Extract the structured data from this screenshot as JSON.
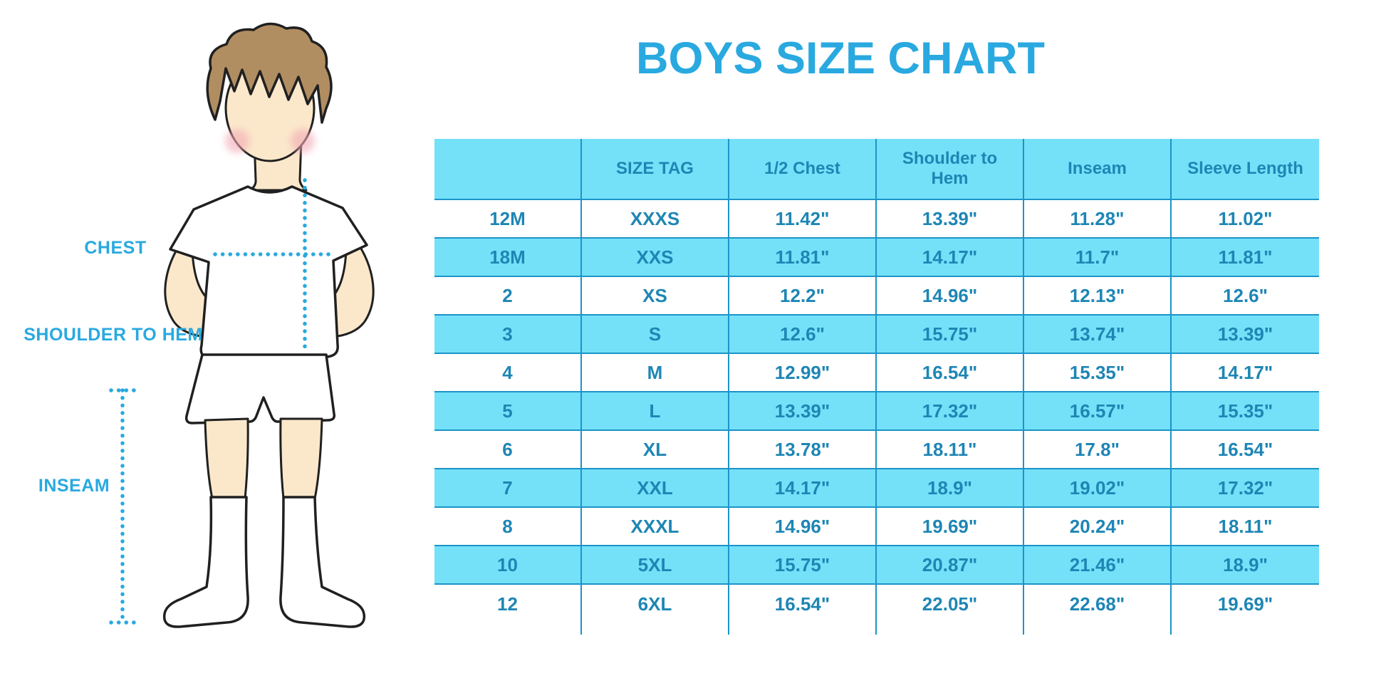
{
  "chart_data": {
    "type": "table",
    "title": "BOYS SIZE CHART",
    "columns": [
      "",
      "SIZE TAG",
      "1/2 Chest",
      "Shoulder to Hem",
      "Inseam",
      "Sleeve Length"
    ],
    "rows": [
      [
        "12M",
        "XXXS",
        "11.42\"",
        "13.39\"",
        "11.28\"",
        "11.02\""
      ],
      [
        "18M",
        "XXS",
        "11.81\"",
        "14.17\"",
        "11.7\"",
        "11.81\""
      ],
      [
        "2",
        "XS",
        "12.2\"",
        "14.96\"",
        "12.13\"",
        "12.6\""
      ],
      [
        "3",
        "S",
        "12.6\"",
        "15.75\"",
        "13.74\"",
        "13.39\""
      ],
      [
        "4",
        "M",
        "12.99\"",
        "16.54\"",
        "15.35\"",
        "14.17\""
      ],
      [
        "5",
        "L",
        "13.39\"",
        "17.32\"",
        "16.57\"",
        "15.35\""
      ],
      [
        "6",
        "XL",
        "13.78\"",
        "18.11\"",
        "17.8\"",
        "16.54\""
      ],
      [
        "7",
        "XXL",
        "14.17\"",
        "18.9\"",
        "19.02\"",
        "17.32\""
      ],
      [
        "8",
        "XXXL",
        "14.96\"",
        "19.69\"",
        "20.24\"",
        "18.11\""
      ],
      [
        "10",
        "5XL",
        "15.75\"",
        "20.87\"",
        "21.46\"",
        "18.9\""
      ],
      [
        "12",
        "6XL",
        "16.54\"",
        "22.05\"",
        "22.68\"",
        "19.69\""
      ]
    ]
  },
  "figure": {
    "labels": {
      "chest": "CHEST",
      "shoulder_to_hem": "SHOULDER TO HEM",
      "inseam": "INSEAM"
    }
  },
  "colors": {
    "accent": "#29A9E0",
    "stripe": "#74E1F9",
    "ink": "#1E86B4",
    "line": "#1C94C8",
    "skin": "#FBE8CB",
    "hair": "#B18E62",
    "cheek": "#F2A9B4",
    "outline": "#202020"
  }
}
